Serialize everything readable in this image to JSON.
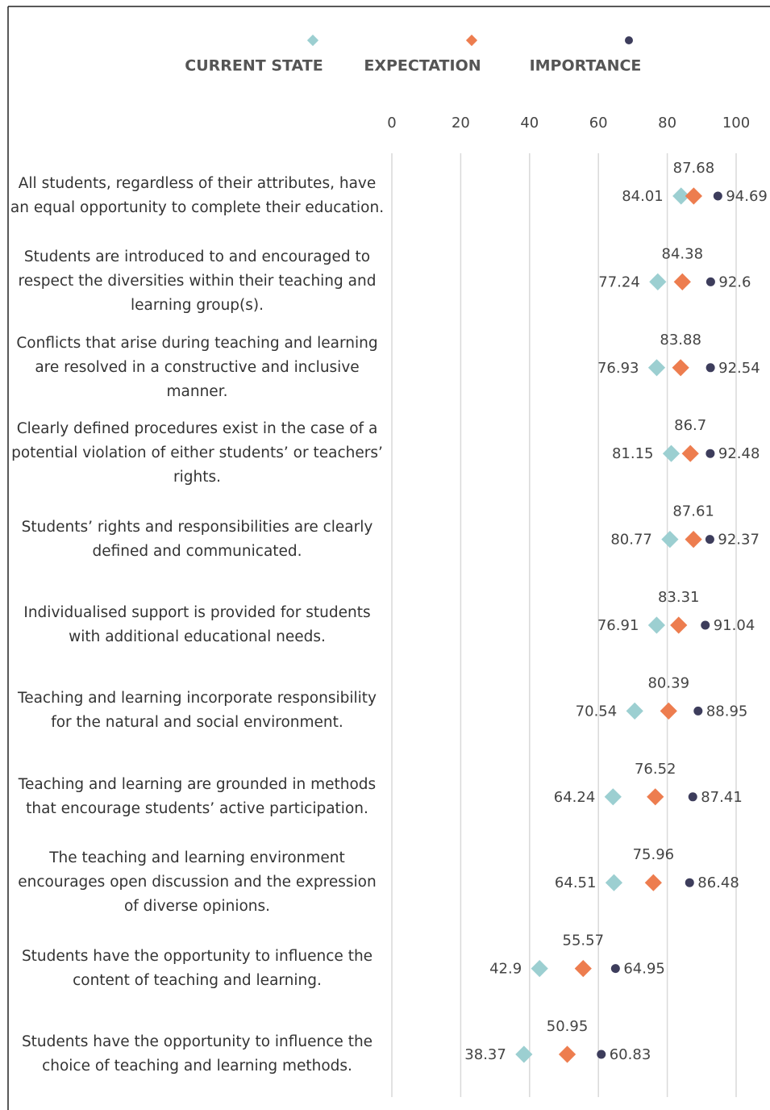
{
  "chart_data": {
    "type": "dot",
    "categories": [
      "All students, regardless of their attributes, have an equal opportunity to complete their education.",
      "Students are introduced to and encouraged to respect the diversities within their teaching and learning group(s).",
      "Conflicts that arise during teaching and learning are resolved in a constructive and inclusive manner.",
      "Clearly defined procedures exist in the case of a potential violation of either students’ or teachers’ rights.",
      "Students’ rights and responsibilities are clearly defined and communicated.",
      "Individualised support is provided for students with additional educational needs.",
      "Teaching and learning incorporate responsibility for the natural and social environment.",
      "Teaching and learning are grounded in methods that encourage students’ active participation.",
      "The teaching and learning environment encourages open discussion and the expression of diverse opinions.",
      "Students have the opportunity to influence the content of teaching and learning.",
      "Students have the opportunity to influence the choice of teaching and learning methods."
    ],
    "series": [
      {
        "name": "CURRENT STATE",
        "color": "#9ccfd1",
        "marker": "diamond",
        "label_position": "left",
        "values": [
          84.01,
          77.24,
          76.93,
          81.15,
          80.77,
          76.91,
          70.54,
          64.24,
          64.51,
          42.9,
          38.37
        ]
      },
      {
        "name": "EXPECTATION",
        "color": "#ed7d4f",
        "marker": "diamond",
        "label_position": "above",
        "values": [
          87.68,
          84.38,
          83.88,
          86.7,
          87.61,
          83.31,
          80.39,
          76.52,
          75.96,
          55.57,
          50.95
        ]
      },
      {
        "name": "IMPORTANCE",
        "color": "#3d3d5c",
        "marker": "circle",
        "label_position": "right",
        "values": [
          94.69,
          92.6,
          92.54,
          92.48,
          92.37,
          91.04,
          88.95,
          87.41,
          86.48,
          64.95,
          60.83
        ]
      }
    ],
    "xlim": [
      0,
      100
    ],
    "xticks": [
      0,
      20,
      40,
      60,
      80,
      100
    ],
    "grid": true,
    "legend": "top"
  }
}
